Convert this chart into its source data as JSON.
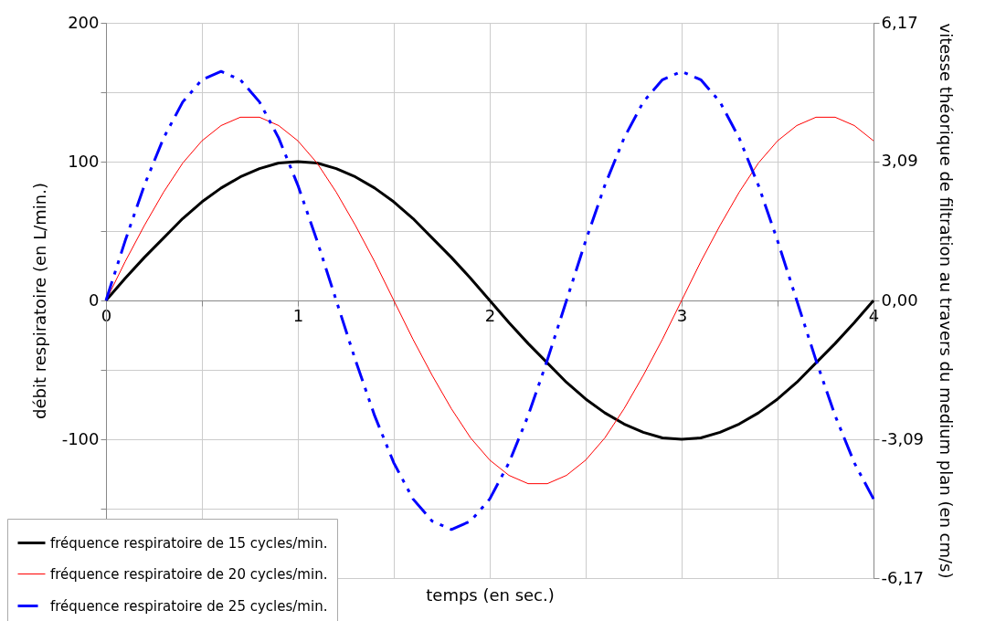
{
  "chart_data": {
    "type": "line",
    "xlabel": "temps (en sec.)",
    "ylabel": "débit respiratoire (en L/min.)",
    "y2label": "vitesse théorique de filtration au travers du medium plan (en cm/s)",
    "x": [
      0,
      0.1,
      0.2,
      0.3,
      0.4,
      0.5,
      0.6,
      0.7,
      0.8,
      0.9,
      1,
      1.1,
      1.2,
      1.3,
      1.4,
      1.5,
      1.6,
      1.7,
      1.8,
      1.9,
      2,
      2.1,
      2.2,
      2.3,
      2.4,
      2.5,
      2.6,
      2.7,
      2.8,
      2.9,
      3,
      3.1,
      3.2,
      3.3,
      3.4,
      3.5,
      3.6,
      3.7,
      3.8,
      3.9,
      4
    ],
    "series": [
      {
        "name": "fréquence respiratoire de 15 cycles/min.",
        "color": "#000000",
        "line_style": "solid",
        "values": [
          0,
          16,
          31,
          45,
          59,
          71,
          81,
          89,
          95,
          99,
          100,
          99,
          95,
          89,
          81,
          71,
          59,
          45,
          31,
          16,
          0,
          -16,
          -31,
          -45,
          -59,
          -71,
          -81,
          -89,
          -95,
          -99,
          -100,
          -99,
          -95,
          -89,
          -81,
          -71,
          -59,
          -45,
          -31,
          -16,
          0
        ]
      },
      {
        "name": "fréquence respiratoire de 20 cycles/min.",
        "color": "#ff0000",
        "line_style": "solid",
        "values": [
          0,
          28,
          54,
          78,
          99,
          115,
          126,
          132,
          132,
          126,
          115,
          99,
          78,
          54,
          28,
          0,
          -28,
          -54,
          -78,
          -99,
          -115,
          -126,
          -132,
          -132,
          -126,
          -115,
          -99,
          -78,
          -54,
          -28,
          0,
          28,
          54,
          78,
          99,
          115,
          126,
          132,
          132,
          126,
          115
        ]
      },
      {
        "name": "fréquence respiratoire de 25 cycles/min.",
        "color": "#0000ff",
        "line_style": "dashed",
        "values": [
          0,
          43,
          83,
          117,
          143,
          159,
          165,
          159,
          143,
          117,
          83,
          43,
          0,
          -43,
          -83,
          -117,
          -143,
          -159,
          -165,
          -159,
          -143,
          -117,
          -83,
          -43,
          0,
          43,
          83,
          117,
          143,
          159,
          165,
          159,
          143,
          117,
          83,
          43,
          0,
          -43,
          -83,
          -117,
          -143
        ]
      }
    ],
    "xlim": [
      0,
      4
    ],
    "xticks": [
      0,
      {
        "value": 0.5,
        "label": null
      },
      1,
      {
        "value": 1.5,
        "label": null
      },
      2,
      {
        "value": 2.5,
        "label": null
      },
      3,
      {
        "value": 3.5,
        "label": null
      },
      4
    ],
    "ylim": [
      -200,
      200
    ],
    "yticks": [
      {
        "value": -200,
        "label": null
      },
      {
        "value": -150,
        "label": null
      },
      -100,
      {
        "value": -50,
        "label": null
      },
      0,
      {
        "value": 50,
        "label": null
      },
      100,
      {
        "value": 150,
        "label": null
      },
      200
    ],
    "y2lim": [
      -6.17,
      6.17
    ],
    "y2ticks": [
      {
        "value": -6.17,
        "label": "-6,17"
      },
      {
        "value": -3.09,
        "label": "-3,09"
      },
      {
        "value": 0,
        "label": "0,00"
      },
      {
        "value": 3.09,
        "label": "3,09"
      },
      {
        "value": 6.17,
        "label": "6,17"
      }
    ],
    "grid": true,
    "legend": "bottom left",
    "marker": "none"
  }
}
